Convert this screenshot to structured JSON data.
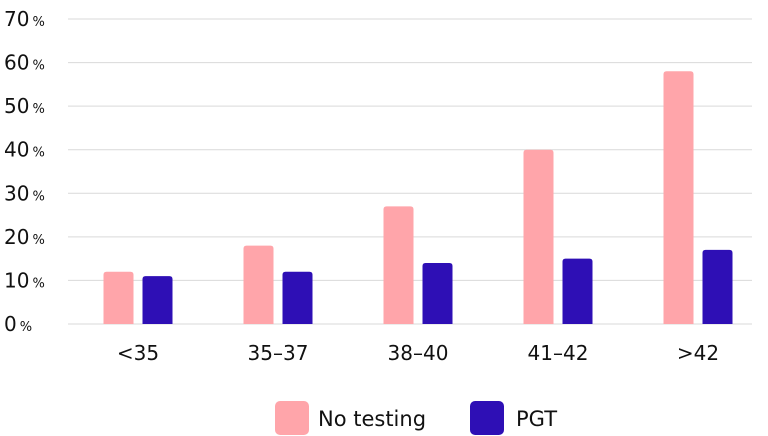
{
  "chart_data": {
    "type": "bar",
    "categories": [
      "<35",
      "35–37",
      "38–40",
      "41–42",
      ">42"
    ],
    "series": [
      {
        "name": "No testing",
        "color": "#ffa5aa",
        "values": [
          12,
          18,
          27,
          40,
          58
        ]
      },
      {
        "name": "PGT",
        "color": "#2e0fb5",
        "values": [
          11,
          12,
          14,
          15,
          17
        ]
      }
    ],
    "y_ticks": [
      {
        "value": 0,
        "num": "0",
        "unit": "%"
      },
      {
        "value": 10,
        "num": "10",
        "unit": "%"
      },
      {
        "value": 20,
        "num": "20",
        "unit": "%"
      },
      {
        "value": 30,
        "num": "30",
        "unit": "%"
      },
      {
        "value": 40,
        "num": "40",
        "unit": "%"
      },
      {
        "value": 50,
        "num": "50",
        "unit": "%"
      },
      {
        "value": 60,
        "num": "60",
        "unit": "%"
      },
      {
        "value": 70,
        "num": "70",
        "unit": "%"
      }
    ],
    "ylim": [
      0,
      70
    ],
    "grid": true,
    "legend_position": "bottom-center",
    "gridline_color": "#d9d9d9"
  }
}
